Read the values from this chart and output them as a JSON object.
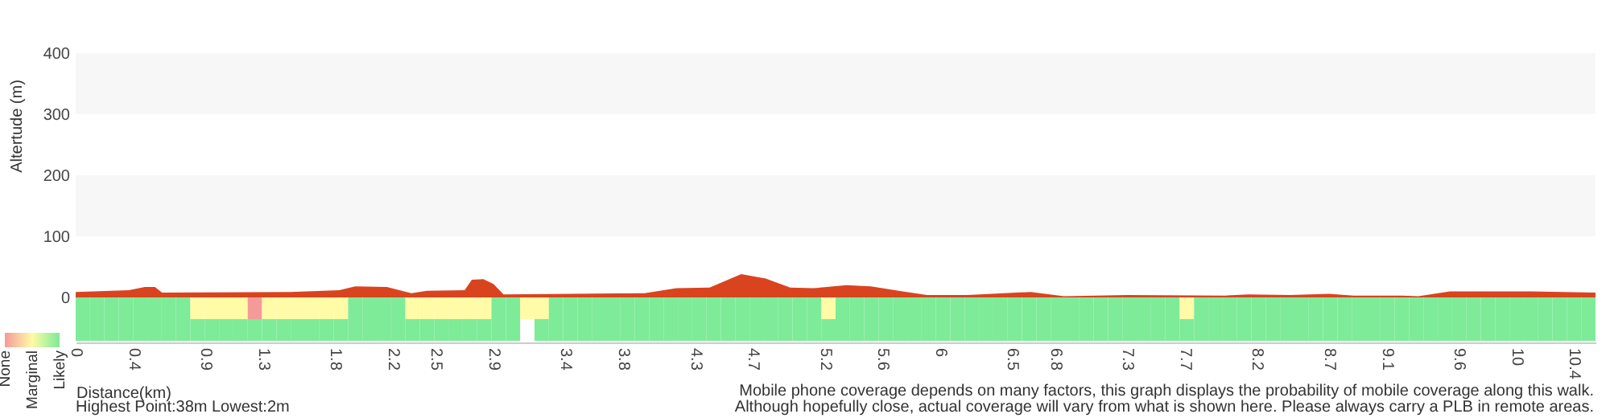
{
  "chart_data": [
    {
      "type": "area",
      "xlabel": "Distance(km)",
      "ylabel": "Altertude (m)",
      "color": "#d9441f",
      "bands": [
        {
          "axis": "y",
          "from": 100,
          "to": 200,
          "color": "#f7f7f7"
        },
        {
          "axis": "y",
          "from": 300,
          "to": 400,
          "color": "#f7f7f7"
        }
      ],
      "x": [
        0,
        0.37,
        0.48,
        0.55,
        0.6,
        1.49,
        1.83,
        1.94,
        2.16,
        2.33,
        2.44,
        2.7,
        2.75,
        2.83,
        2.9,
        2.97,
        3.95,
        4.17,
        4.4,
        4.62,
        4.79,
        4.96,
        5.12,
        5.35,
        5.52,
        5.74,
        5.91,
        6.19,
        6.63,
        6.86,
        7.3,
        7.98,
        8.14,
        8.43,
        8.7,
        8.87,
        9.21,
        9.32,
        9.54,
        10.1,
        10.55
      ],
      "values": [
        9,
        12,
        17,
        17,
        8,
        9,
        12,
        18,
        17,
        7,
        11,
        12,
        29,
        30,
        22,
        5,
        7,
        15,
        16,
        38,
        31,
        16,
        15,
        20,
        18,
        10,
        4,
        4,
        9,
        2,
        4,
        3,
        5,
        4,
        6,
        3,
        3,
        2,
        10,
        10,
        8
      ],
      "xlim": [
        0,
        10.55
      ],
      "ylim": [
        0,
        400
      ],
      "yticks": [
        0,
        100,
        200,
        300,
        400
      ],
      "xticks": [
        0,
        0.4,
        0.9,
        1.3,
        1.8,
        2.2,
        2.5,
        2.9,
        3.4,
        3.8,
        4.3,
        4.7,
        5.2,
        5.6,
        6,
        6.5,
        6.8,
        7.3,
        7.7,
        8.2,
        8.7,
        9.1,
        9.6,
        10,
        10.4
      ],
      "annotations": [
        "Highest Point:38m Lowest:2m",
        "Mobile phone coverage depends on many factors, this graph displays the probability of mobile coverage along this walk.",
        "Although hopefully close, actual coverage will vary from what is shown here. Please always carry a PLB in remote areas."
      ]
    },
    {
      "type": "heatmap",
      "tick_labels": false,
      "categories": [
        null,
        null,
        null,
        null,
        null,
        null,
        null,
        null,
        null,
        null,
        null,
        null,
        null,
        null,
        null,
        null,
        null,
        null,
        null,
        null,
        null,
        null,
        null,
        null,
        null,
        null,
        null,
        null,
        null,
        null,
        null,
        null,
        null,
        null,
        null,
        null,
        null,
        null,
        null,
        null,
        null,
        null,
        null,
        null,
        null,
        null,
        null,
        null,
        null,
        null,
        null,
        null,
        null,
        null,
        null,
        null,
        null,
        null,
        null,
        null,
        null,
        null,
        null,
        null,
        null,
        null,
        null,
        null,
        null,
        null,
        null,
        null,
        null,
        null,
        null,
        null,
        null,
        null,
        null,
        null,
        null,
        null,
        null,
        null,
        null,
        null,
        null,
        null,
        null,
        null,
        null,
        null,
        null,
        null,
        null,
        null,
        null,
        null,
        null,
        null,
        null,
        null,
        null,
        null,
        null,
        null
      ],
      "y_categories": [
        null,
        null
      ],
      "cells": [
        [
          2,
          2,
          2,
          2,
          2,
          2,
          2,
          2,
          1,
          1,
          1,
          1,
          0,
          1,
          1,
          1,
          1,
          1,
          1,
          2,
          2,
          2,
          2,
          1,
          1,
          1,
          1,
          1,
          1,
          2,
          2,
          1,
          1,
          2,
          2,
          2,
          2,
          2,
          2,
          2,
          2,
          2,
          2,
          2,
          2,
          2,
          2,
          2,
          2,
          2,
          2,
          2,
          1,
          2,
          2,
          2,
          2,
          2,
          2,
          2,
          2,
          2,
          2,
          2,
          2,
          2,
          2,
          2,
          2,
          2,
          2,
          2,
          2,
          2,
          2,
          2,
          2,
          1,
          2,
          2,
          2,
          2,
          2,
          2,
          2,
          2,
          2,
          2,
          2,
          2,
          2,
          2,
          2,
          2,
          2,
          2,
          2,
          2,
          2,
          2,
          2,
          2,
          2,
          2,
          2,
          2
        ],
        [
          2,
          2,
          2,
          2,
          2,
          2,
          2,
          2,
          2,
          2,
          2,
          2,
          2,
          2,
          2,
          2,
          2,
          2,
          2,
          2,
          2,
          2,
          2,
          2,
          2,
          2,
          2,
          2,
          2,
          2,
          2,
          null,
          2,
          2,
          2,
          2,
          2,
          2,
          2,
          2,
          2,
          2,
          2,
          2,
          2,
          2,
          2,
          2,
          2,
          2,
          2,
          2,
          2,
          2,
          2,
          2,
          2,
          2,
          2,
          2,
          2,
          2,
          2,
          2,
          2,
          2,
          2,
          2,
          2,
          2,
          2,
          2,
          2,
          2,
          2,
          2,
          2,
          2,
          2,
          2,
          2,
          2,
          2,
          2,
          2,
          2,
          2,
          2,
          2,
          2,
          2,
          2,
          2,
          2,
          2,
          2,
          2,
          2,
          2,
          2,
          2,
          2,
          2,
          2,
          2,
          2
        ]
      ],
      "cticks": [
        {
          "value": 0,
          "label": "None"
        },
        {
          "value": 1,
          "label": "Marginal"
        },
        {
          "value": 2,
          "label": "Likely"
        }
      ],
      "colors": [
        "#f59a9a",
        "#fffba6",
        "#7deb98"
      ]
    }
  ]
}
